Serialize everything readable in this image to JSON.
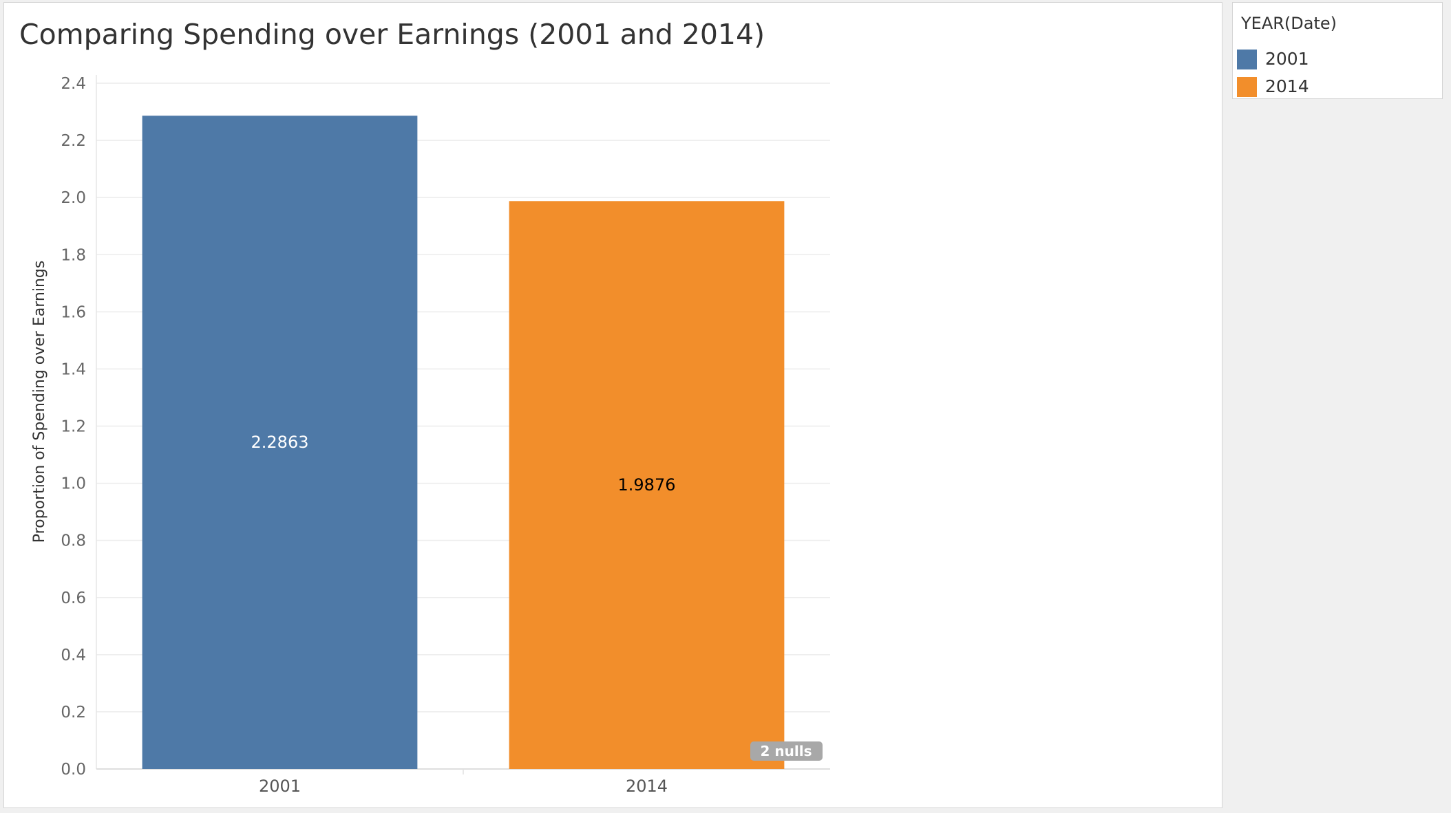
{
  "title": "Comparing Spending over Earnings (2001 and 2014)",
  "legend": {
    "title": "YEAR(Date)",
    "items": [
      {
        "label": "2001",
        "color": "#4e79a7"
      },
      {
        "label": "2014",
        "color": "#f28e2b"
      }
    ]
  },
  "null_indicator": "2 nulls",
  "chart_data": {
    "type": "bar",
    "title": "Comparing Spending over Earnings (2001 and 2014)",
    "ylabel": "Proportion of Spending over Earnings",
    "xlabel": "",
    "categories": [
      "2001",
      "2014"
    ],
    "values": [
      2.2863,
      1.9876
    ],
    "value_labels": [
      "2.2863",
      "1.9876"
    ],
    "label_colors": [
      "#ffffff",
      "#000000"
    ],
    "colors": [
      "#4e79a7",
      "#f28e2b"
    ],
    "ylim": [
      0,
      2.4
    ],
    "yticks": [
      0,
      0.2,
      0.4,
      0.6,
      0.8,
      1.0,
      1.2,
      1.4,
      1.6,
      1.8,
      2.0,
      2.2,
      2.4
    ],
    "ytick_labels": [
      "0.0",
      "0.2",
      "0.4",
      "0.6",
      "0.8",
      "1.0",
      "1.2",
      "1.4",
      "1.6",
      "1.8",
      "2.0",
      "2.2",
      "2.4"
    ],
    "grid": true,
    "legend_position": "right"
  }
}
